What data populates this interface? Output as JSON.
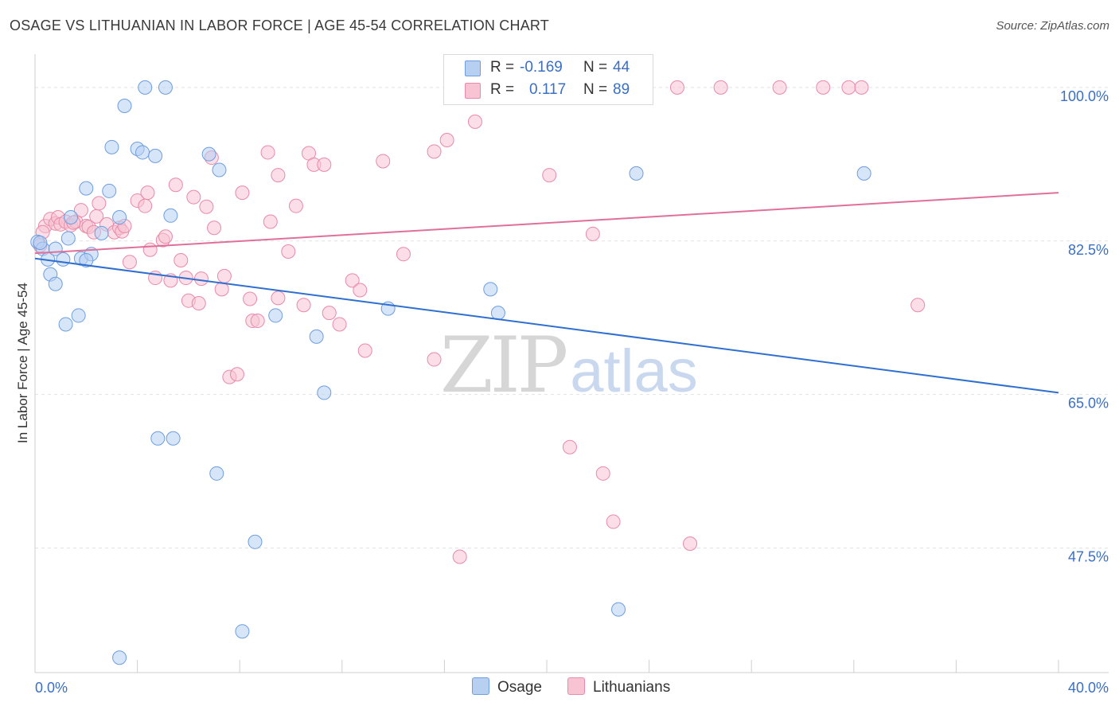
{
  "title": "OSAGE VS LITHUANIAN IN LABOR FORCE | AGE 45-54 CORRELATION CHART",
  "source": "Source: ZipAtlas.com",
  "watermark": {
    "zip": "ZIP",
    "atlas": "atlas"
  },
  "legend_top": {
    "rows": [
      {
        "r_label": "R =",
        "r_value": "-0.169",
        "n_label": "N =",
        "n_value": "44"
      },
      {
        "r_label": "R =",
        "r_value": "0.117",
        "n_label": "N =",
        "n_value": "89"
      }
    ]
  },
  "legend_bottom": {
    "items": [
      "Osage",
      "Lithuanians"
    ]
  },
  "colors": {
    "osage_fill": "#b7d0f2",
    "osage_stroke": "#6d9ee0",
    "osage_line": "#2f6fd0",
    "lith_fill": "#f8c3d3",
    "lith_stroke": "#e98aa8",
    "lith_line": "#e07099",
    "axis_label": "#3a6fc4",
    "grid": "#e2e2e2"
  },
  "chart_data": {
    "type": "scatter",
    "title": "OSAGE VS LITHUANIAN IN LABOR FORCE | AGE 45-54 CORRELATION CHART",
    "xlabel": "",
    "ylabel": "In Labor Force | Age 45-54",
    "xlim": [
      0,
      40
    ],
    "ylim": [
      33.3,
      103.8
    ],
    "x_tick_labels": [
      {
        "value": 0,
        "label": "0.0%"
      },
      {
        "value": 40,
        "label": "40.0%"
      }
    ],
    "y_tick_labels": [
      {
        "value": 47.5,
        "label": "47.5%"
      },
      {
        "value": 65.0,
        "label": "65.0%"
      },
      {
        "value": 82.5,
        "label": "82.5%"
      },
      {
        "value": 100.0,
        "label": "100.0%"
      }
    ],
    "x_minor_ticks": [
      0,
      4,
      8,
      12,
      16,
      20,
      24,
      28,
      32,
      36,
      40
    ],
    "y_gridlines": [
      47.5,
      65.0,
      82.5,
      100.0
    ],
    "legend_placement": "top-center",
    "series": [
      {
        "name": "Osage",
        "r": -0.169,
        "n": 44,
        "trend": {
          "x": [
            0,
            40
          ],
          "y": [
            80.5,
            65.2
          ]
        },
        "points": [
          [
            0.1,
            82.4
          ],
          [
            0.3,
            81.6
          ],
          [
            0.5,
            80.4
          ],
          [
            0.6,
            78.7
          ],
          [
            0.8,
            77.6
          ],
          [
            0.8,
            81.6
          ],
          [
            1.1,
            80.4
          ],
          [
            1.2,
            73.0
          ],
          [
            1.3,
            82.8
          ],
          [
            1.4,
            85.2
          ],
          [
            1.7,
            74.0
          ],
          [
            2.0,
            88.5
          ],
          [
            1.8,
            80.5
          ],
          [
            2.2,
            81.0
          ],
          [
            2.0,
            80.3
          ],
          [
            2.6,
            83.4
          ],
          [
            2.9,
            88.2
          ],
          [
            3.0,
            93.2
          ],
          [
            3.3,
            85.2
          ],
          [
            3.5,
            97.9
          ],
          [
            3.3,
            35.0
          ],
          [
            4.0,
            93.0
          ],
          [
            4.2,
            92.6
          ],
          [
            4.3,
            100.0
          ],
          [
            4.7,
            92.2
          ],
          [
            5.1,
            100.0
          ],
          [
            4.8,
            60.0
          ],
          [
            5.4,
            60.0
          ],
          [
            5.3,
            85.4
          ],
          [
            6.8,
            92.4
          ],
          [
            7.1,
            56.0
          ],
          [
            7.2,
            90.6
          ],
          [
            8.1,
            38.0
          ],
          [
            8.6,
            48.2
          ],
          [
            9.4,
            74.0
          ],
          [
            11.0,
            71.6
          ],
          [
            11.3,
            65.2
          ],
          [
            13.8,
            74.8
          ],
          [
            17.8,
            77.0
          ],
          [
            18.1,
            74.3
          ],
          [
            22.8,
            40.5
          ],
          [
            23.5,
            90.2
          ],
          [
            32.4,
            90.2
          ],
          [
            0.2,
            82.3
          ]
        ]
      },
      {
        "name": "Lithuanians",
        "r": 0.117,
        "n": 89,
        "trend": {
          "x": [
            0,
            40
          ],
          "y": [
            81.1,
            88.0
          ]
        },
        "points": [
          [
            0.2,
            82.0
          ],
          [
            0.4,
            84.2
          ],
          [
            0.6,
            85.0
          ],
          [
            0.8,
            84.5
          ],
          [
            0.9,
            85.2
          ],
          [
            1.0,
            84.4
          ],
          [
            1.2,
            84.7
          ],
          [
            1.4,
            84.3
          ],
          [
            1.6,
            84.7
          ],
          [
            1.8,
            86.0
          ],
          [
            2.0,
            84.2
          ],
          [
            2.1,
            84.1
          ],
          [
            2.3,
            83.5
          ],
          [
            2.4,
            85.3
          ],
          [
            2.5,
            86.8
          ],
          [
            2.8,
            84.4
          ],
          [
            3.1,
            83.5
          ],
          [
            3.3,
            84.0
          ],
          [
            3.4,
            83.6
          ],
          [
            3.5,
            84.2
          ],
          [
            3.7,
            80.1
          ],
          [
            4.0,
            87.1
          ],
          [
            4.3,
            86.5
          ],
          [
            4.4,
            88.0
          ],
          [
            4.5,
            81.5
          ],
          [
            4.7,
            78.3
          ],
          [
            5.0,
            82.6
          ],
          [
            5.1,
            83.0
          ],
          [
            5.3,
            78.0
          ],
          [
            5.5,
            88.9
          ],
          [
            5.7,
            80.3
          ],
          [
            5.9,
            78.3
          ],
          [
            6.0,
            75.7
          ],
          [
            6.2,
            87.5
          ],
          [
            6.4,
            75.4
          ],
          [
            6.5,
            78.2
          ],
          [
            6.7,
            86.4
          ],
          [
            6.9,
            92.0
          ],
          [
            7.0,
            84.0
          ],
          [
            7.3,
            77.0
          ],
          [
            7.4,
            78.5
          ],
          [
            7.6,
            67.0
          ],
          [
            7.9,
            67.3
          ],
          [
            8.1,
            88.0
          ],
          [
            8.4,
            75.9
          ],
          [
            8.5,
            73.4
          ],
          [
            8.7,
            73.4
          ],
          [
            9.1,
            92.6
          ],
          [
            9.2,
            84.7
          ],
          [
            9.5,
            76.0
          ],
          [
            9.5,
            90.0
          ],
          [
            9.9,
            81.3
          ],
          [
            10.2,
            86.5
          ],
          [
            10.5,
            75.2
          ],
          [
            10.7,
            92.5
          ],
          [
            10.9,
            91.2
          ],
          [
            11.3,
            91.2
          ],
          [
            11.5,
            74.3
          ],
          [
            11.9,
            73.0
          ],
          [
            12.4,
            78.0
          ],
          [
            12.7,
            76.9
          ],
          [
            12.9,
            70.0
          ],
          [
            13.6,
            91.6
          ],
          [
            14.4,
            81.0
          ],
          [
            15.6,
            69.0
          ],
          [
            15.6,
            92.7
          ],
          [
            16.1,
            94.0
          ],
          [
            16.6,
            46.5
          ],
          [
            16.9,
            100.0
          ],
          [
            17.2,
            96.1
          ],
          [
            18.1,
            100.0
          ],
          [
            19.0,
            100.0
          ],
          [
            20.1,
            90.0
          ],
          [
            20.9,
            59.0
          ],
          [
            21.8,
            83.3
          ],
          [
            22.2,
            56.0
          ],
          [
            22.6,
            50.5
          ],
          [
            23.0,
            100.0
          ],
          [
            25.1,
            100.0
          ],
          [
            25.6,
            48.0
          ],
          [
            26.8,
            100.0
          ],
          [
            29.1,
            100.0
          ],
          [
            30.8,
            100.0
          ],
          [
            31.8,
            100.0
          ],
          [
            32.3,
            100.0
          ],
          [
            34.5,
            75.2
          ],
          [
            0.3,
            83.5
          ],
          [
            1.5,
            84.6
          ],
          [
            22.7,
            100.0
          ]
        ]
      }
    ]
  }
}
